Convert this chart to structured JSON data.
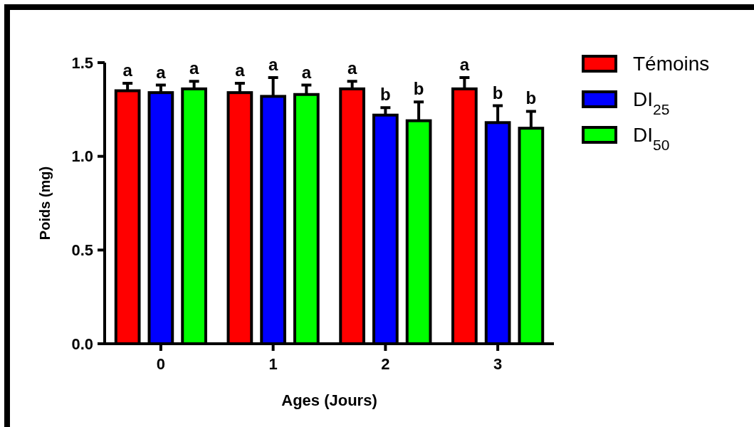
{
  "chart_data": {
    "type": "bar",
    "xlabel": "Ages (Jours)",
    "ylabel": "Poids (mg)",
    "categories": [
      "0",
      "1",
      "2",
      "3"
    ],
    "ylim": [
      0,
      1.5
    ],
    "yticks": [
      {
        "value": 0,
        "label": "0.0"
      },
      {
        "value": 0.5,
        "label": "0.5"
      },
      {
        "value": 1,
        "label": "1.0"
      },
      {
        "value": 1.5,
        "label": "1.5"
      }
    ],
    "grid": false,
    "legend": "top right",
    "series": [
      {
        "name": "Témoins",
        "color": "#ff0000",
        "values": [
          1.35,
          1.34,
          1.36,
          1.36
        ],
        "errors": [
          0.04,
          0.05,
          0.04,
          0.06
        ],
        "value_labels": [
          "a",
          "a",
          "a",
          "a"
        ]
      },
      {
        "name": "DI$_{25}$",
        "color": "#0000ff",
        "values": [
          1.34,
          1.32,
          1.22,
          1.18
        ],
        "errors": [
          0.04,
          0.1,
          0.04,
          0.09
        ],
        "value_labels": [
          "a",
          "a",
          "b",
          "b"
        ]
      },
      {
        "name": "DI$_{50}$",
        "color": "#00ff00",
        "values": [
          1.36,
          1.33,
          1.19,
          1.15
        ],
        "errors": [
          0.04,
          0.05,
          0.1,
          0.09
        ],
        "value_labels": [
          "a",
          "a",
          "b",
          "b"
        ]
      }
    ]
  }
}
